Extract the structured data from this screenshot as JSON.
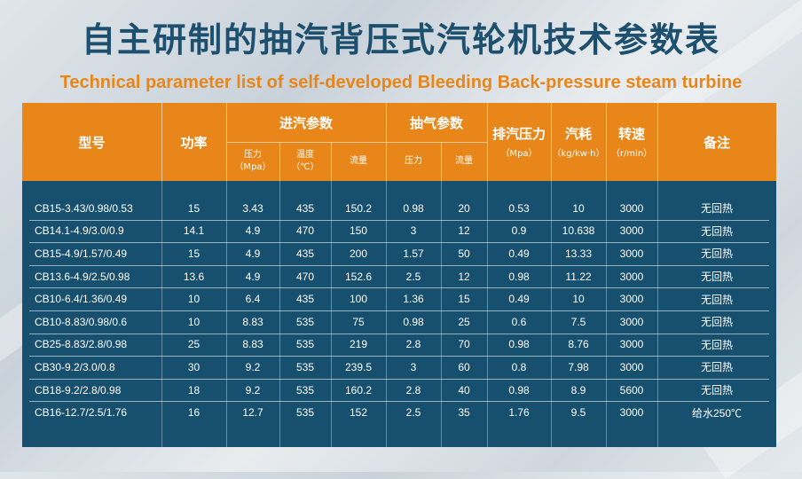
{
  "title": {
    "cn": "自主研制的抽汽背压式汽轮机技术参数表",
    "en": "Technical parameter list of self-developed Bleeding  Back-pressure steam turbine"
  },
  "header": {
    "model": "型号",
    "power": "功率",
    "inlet_group": "进汽参数",
    "inlet_pressure": "压力",
    "inlet_pressure_unit": "（Mpa）",
    "inlet_temp": "温度",
    "inlet_temp_unit": "（℃）",
    "inlet_flow": "流量",
    "extraction_group": "抽气参数",
    "extraction_pressure": "压力",
    "extraction_flow": "流量",
    "exhaust": "排汽压力",
    "exhaust_unit": "（Mpa）",
    "steam_consumption": "汽耗",
    "steam_consumption_unit": "（kg/kw·h）",
    "speed": "转速",
    "speed_unit": "（r/min）",
    "remark": "备注"
  },
  "rows": [
    {
      "model": "CB15-3.43/0.98/0.53",
      "power": "15",
      "ip": "3.43",
      "it": "435",
      "if": "150.2",
      "ep": "0.98",
      "ef": "20",
      "xp": "0.53",
      "sc": "10",
      "sp": "3000",
      "rm": "无回热"
    },
    {
      "model": "CB14.1-4.9/3.0/0.9",
      "power": "14.1",
      "ip": "4.9",
      "it": "470",
      "if": "150",
      "ep": "3",
      "ef": "12",
      "xp": "0.9",
      "sc": "10.638",
      "sp": "3000",
      "rm": "无回热"
    },
    {
      "model": "CB15-4.9/1.57/0.49",
      "power": "15",
      "ip": "4.9",
      "it": "435",
      "if": "200",
      "ep": "1.57",
      "ef": "50",
      "xp": "0.49",
      "sc": "13.33",
      "sp": "3000",
      "rm": "无回热"
    },
    {
      "model": "CB13.6-4.9/2.5/0.98",
      "power": "13.6",
      "ip": "4.9",
      "it": "470",
      "if": "152.6",
      "ep": "2.5",
      "ef": "12",
      "xp": "0.98",
      "sc": "11.22",
      "sp": "3000",
      "rm": "无回热"
    },
    {
      "model": "CB10-6.4/1.36/0.49",
      "power": "10",
      "ip": "6.4",
      "it": "435",
      "if": "100",
      "ep": "1.36",
      "ef": "15",
      "xp": "0.49",
      "sc": "10",
      "sp": "3000",
      "rm": "无回热"
    },
    {
      "model": "CB10-8.83/0.98/0.6",
      "power": "10",
      "ip": "8.83",
      "it": "535",
      "if": "75",
      "ep": "0.98",
      "ef": "25",
      "xp": "0.6",
      "sc": "7.5",
      "sp": "3000",
      "rm": "无回热"
    },
    {
      "model": "CB25-8.83/2.8/0.98",
      "power": "25",
      "ip": "8.83",
      "it": "535",
      "if": "219",
      "ep": "2.8",
      "ef": "70",
      "xp": "0.98",
      "sc": "8.76",
      "sp": "3000",
      "rm": "无回热"
    },
    {
      "model": "CB30-9.2/3.0/0.8",
      "power": "30",
      "ip": "9.2",
      "it": "535",
      "if": "239.5",
      "ep": "3",
      "ef": "60",
      "xp": "0.8",
      "sc": "7.98",
      "sp": "3000",
      "rm": "无回热"
    },
    {
      "model": "CB18-9.2/2.8/0.98",
      "power": "18",
      "ip": "9.2",
      "it": "535",
      "if": "160.2",
      "ep": "2.8",
      "ef": "40",
      "xp": "0.98",
      "sc": "8.9",
      "sp": "5600",
      "rm": "无回热"
    },
    {
      "model": "CB16-12.7/2.5/1.76",
      "power": "16",
      "ip": "12.7",
      "it": "535",
      "if": "152",
      "ep": "2.5",
      "ef": "35",
      "xp": "1.76",
      "sc": "9.5",
      "sp": "3000",
      "rm": "给水250℃"
    }
  ]
}
